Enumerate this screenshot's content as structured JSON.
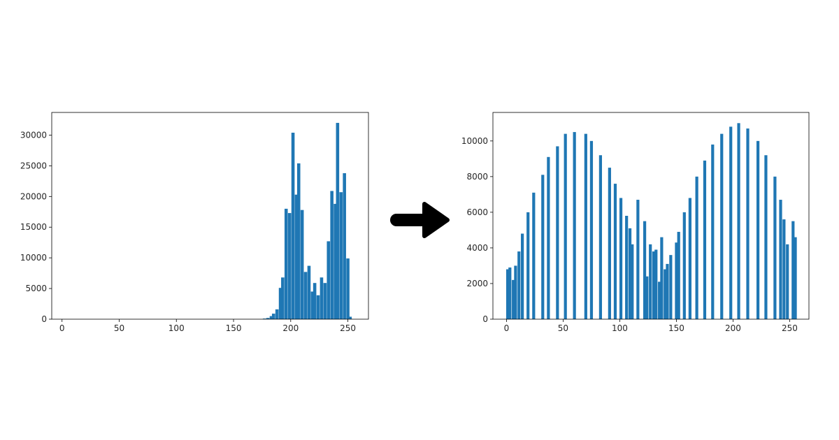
{
  "colors": {
    "bar": "#1f77b4",
    "axis": "#000000",
    "text": "#262626",
    "arrow": "#000000"
  },
  "arrow": {
    "icon": "right-arrow-icon"
  },
  "chart_data": [
    {
      "type": "bar",
      "title": "",
      "xlabel": "",
      "ylabel": "",
      "xlim": [
        -9,
        268
      ],
      "ylim": [
        0,
        33700
      ],
      "grid": false,
      "xticks": [
        0,
        50,
        100,
        150,
        200,
        250
      ],
      "yticks": [
        0,
        5000,
        10000,
        15000,
        20000,
        25000,
        30000
      ],
      "bar_width": 2.8,
      "x": [
        177,
        180,
        183,
        185,
        188,
        191,
        193,
        196,
        199,
        202,
        205,
        207,
        210,
        213,
        216,
        219,
        221,
        224,
        227,
        230,
        233,
        236,
        239,
        241,
        244,
        247,
        250,
        252
      ],
      "values": [
        100,
        200,
        500,
        900,
        1600,
        5100,
        6800,
        18000,
        17300,
        30400,
        20300,
        25400,
        17800,
        7700,
        8700,
        4500,
        5900,
        3900,
        6800,
        5900,
        12700,
        20900,
        18800,
        32000,
        20700,
        23800,
        9900,
        400
      ]
    },
    {
      "type": "bar",
      "title": "",
      "xlabel": "",
      "ylabel": "",
      "xlim": [
        -12,
        267
      ],
      "ylim": [
        0,
        11600
      ],
      "grid": false,
      "xticks": [
        0,
        50,
        100,
        150,
        200,
        250
      ],
      "yticks": [
        0,
        2000,
        4000,
        6000,
        8000,
        10000
      ],
      "bar_width": 2.6,
      "x": [
        1,
        3,
        6,
        8,
        11,
        14,
        19,
        24,
        32,
        37,
        45,
        52,
        60,
        70,
        75,
        83,
        91,
        96,
        101,
        106,
        109,
        111,
        116,
        122,
        124,
        127,
        130,
        132,
        135,
        137,
        140,
        142,
        145,
        150,
        152,
        157,
        162,
        168,
        175,
        182,
        190,
        198,
        205,
        213,
        222,
        229,
        237,
        242,
        245,
        248,
        253,
        255
      ],
      "values": [
        2800,
        2900,
        2200,
        3000,
        3800,
        4800,
        6000,
        7100,
        8100,
        9100,
        9700,
        10400,
        10500,
        10400,
        10000,
        9200,
        8500,
        7600,
        6800,
        5800,
        5100,
        4200,
        6700,
        5500,
        2400,
        4200,
        3800,
        3900,
        2100,
        4600,
        2800,
        3100,
        3600,
        4300,
        4900,
        6000,
        6800,
        8000,
        8900,
        9800,
        10400,
        10800,
        11000,
        10700,
        10000,
        9200,
        8000,
        6700,
        5600,
        4200,
        5500,
        4600
      ]
    }
  ]
}
